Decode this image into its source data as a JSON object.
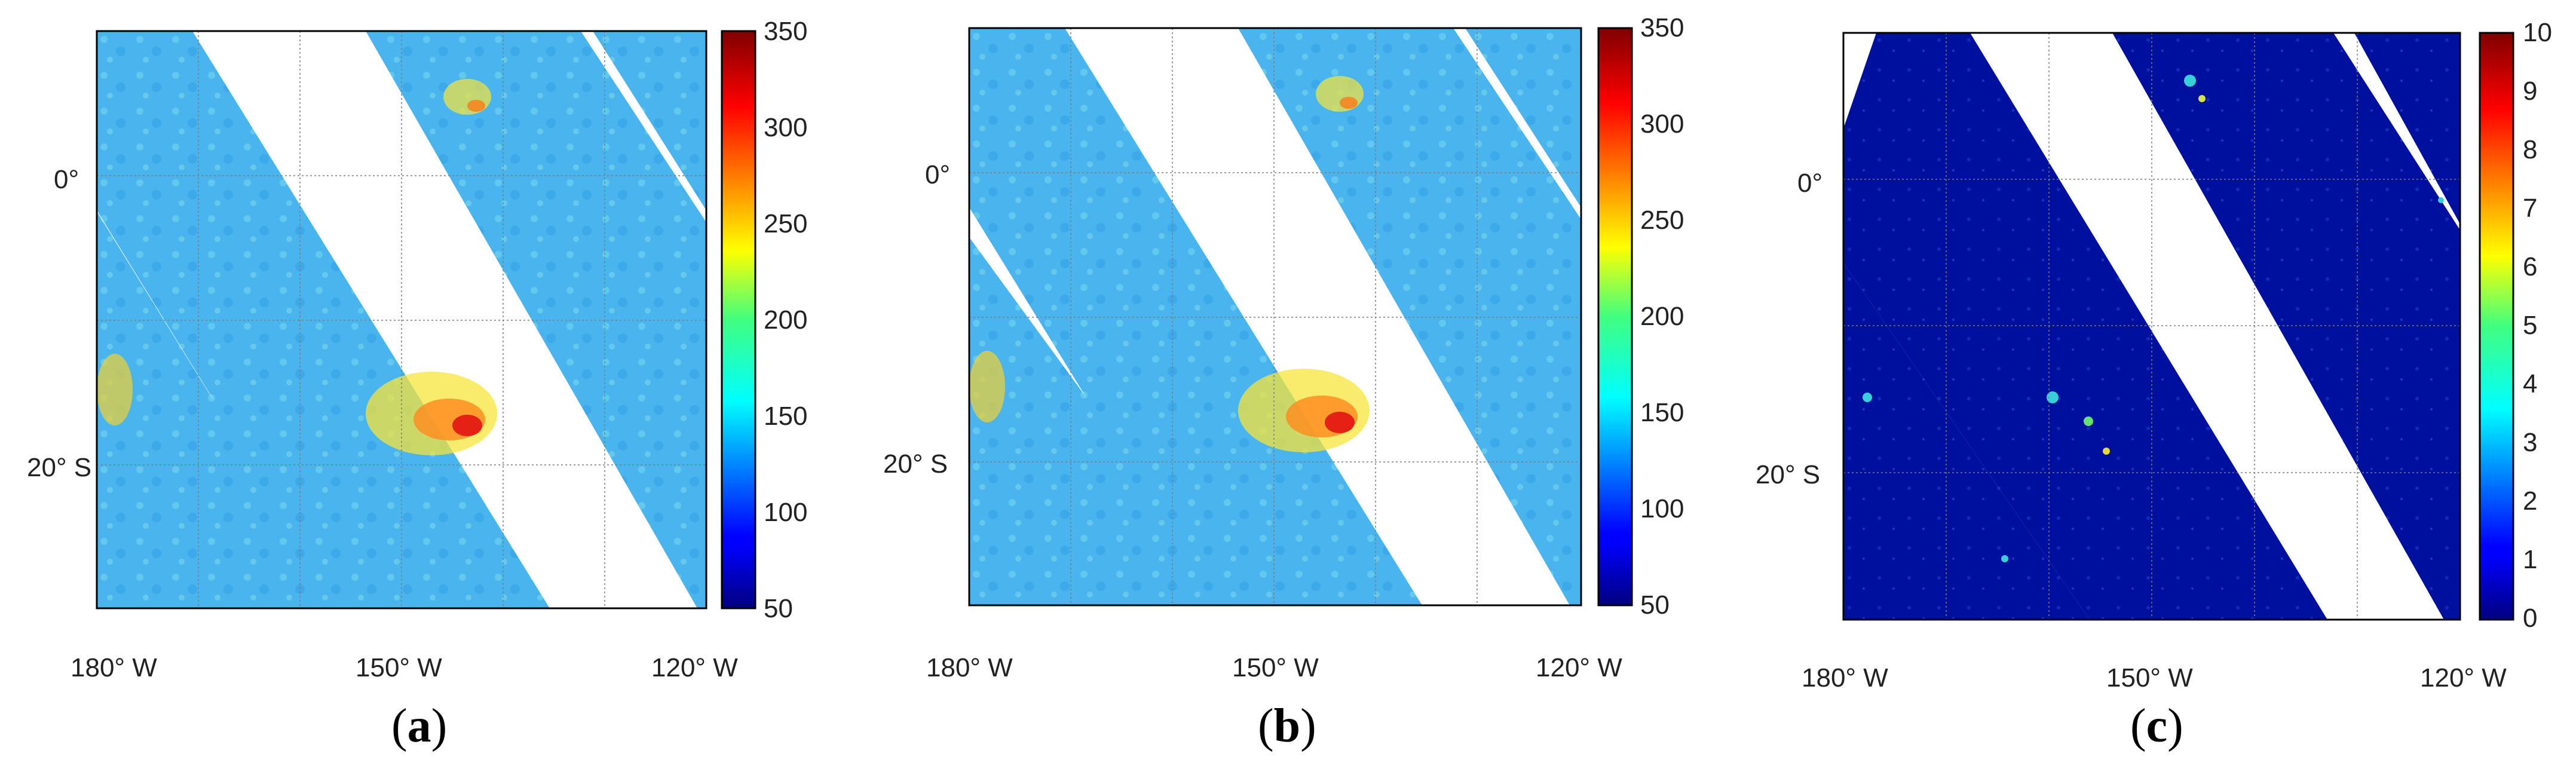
{
  "colors": {
    "background_band": "#3fb0f0",
    "frame": "#000000"
  },
  "panels": [
    {
      "id": "a",
      "caption": "a",
      "colorbar": {
        "min": 50,
        "max": 350,
        "ticks": [
          "350",
          "300",
          "250",
          "200",
          "150",
          "100",
          "50"
        ],
        "scale": "jet"
      },
      "lat_labels": [
        "0°",
        "20° S"
      ],
      "lon_labels": [
        "180° W",
        "150° W",
        "120° W"
      ]
    },
    {
      "id": "b",
      "caption": "b",
      "colorbar": {
        "min": 50,
        "max": 350,
        "ticks": [
          "350",
          "300",
          "250",
          "200",
          "150",
          "100",
          "50"
        ],
        "scale": "jet"
      },
      "lat_labels": [
        "0°",
        "20° S"
      ],
      "lon_labels": [
        "180° W",
        "150° W",
        "120° W"
      ]
    },
    {
      "id": "c",
      "caption": "c",
      "colorbar": {
        "min": 0,
        "max": 10,
        "ticks": [
          "10",
          "9",
          "8",
          "7",
          "6",
          "5",
          "4",
          "3",
          "2",
          "1",
          "0"
        ],
        "scale": "jet"
      },
      "lat_labels": [
        "0°",
        "20° S"
      ],
      "lon_labels": [
        "180° W",
        "150° W",
        "120° W"
      ]
    }
  ]
}
